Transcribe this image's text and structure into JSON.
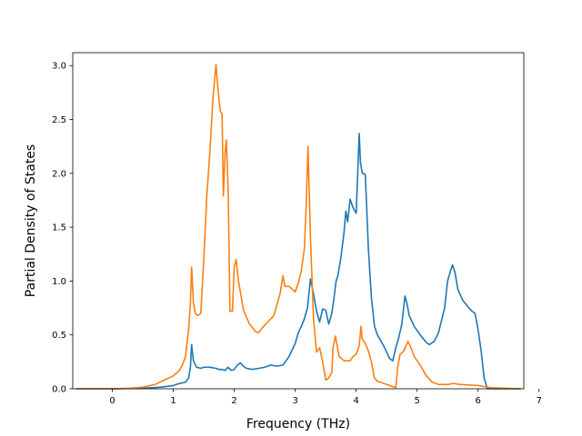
{
  "chart_data": {
    "type": "line",
    "xlabel": "Frequency (THz)",
    "ylabel": "Partial Density of States",
    "xlim": [
      -0.65,
      6.75
    ],
    "ylim": [
      0,
      3.12
    ],
    "xticks": [
      0,
      1,
      2,
      3,
      4,
      5,
      6,
      7
    ],
    "xtick_labels": [
      "0",
      "1",
      "2",
      "3",
      "4",
      "5",
      "6",
      "7"
    ],
    "yticks": [
      0,
      0.5,
      1.0,
      1.5,
      2.0,
      2.5,
      3.0
    ],
    "ytick_labels": [
      "0.0",
      "0.5",
      "1.0",
      "1.5",
      "2.0",
      "2.5",
      "3.0"
    ],
    "grid": false,
    "series": [
      {
        "color": "#1f77b4",
        "x": [
          -0.6,
          0.0,
          0.5,
          0.8,
          1.0,
          1.1,
          1.2,
          1.25,
          1.28,
          1.3,
          1.33,
          1.38,
          1.45,
          1.5,
          1.6,
          1.7,
          1.75,
          1.8,
          1.85,
          1.9,
          1.95,
          2.0,
          2.05,
          2.1,
          2.15,
          2.2,
          2.3,
          2.4,
          2.5,
          2.6,
          2.7,
          2.8,
          2.9,
          3.0,
          3.05,
          3.1,
          3.15,
          3.2,
          3.25,
          3.3,
          3.35,
          3.4,
          3.45,
          3.5,
          3.55,
          3.6,
          3.63,
          3.67,
          3.7,
          3.75,
          3.8,
          3.83,
          3.86,
          3.9,
          3.95,
          4.0,
          4.05,
          4.07,
          4.1,
          4.15,
          4.2,
          4.25,
          4.3,
          4.35,
          4.45,
          4.55,
          4.6,
          4.65,
          4.7,
          4.75,
          4.8,
          4.83,
          4.87,
          4.95,
          5.05,
          5.15,
          5.2,
          5.28,
          5.35,
          5.45,
          5.5,
          5.55,
          5.58,
          5.62,
          5.67,
          5.75,
          5.85,
          5.9,
          5.95,
          6.0,
          6.05,
          6.1,
          6.15,
          6.7
        ],
        "y": [
          0,
          0,
          0.005,
          0.015,
          0.03,
          0.05,
          0.06,
          0.1,
          0.2,
          0.41,
          0.26,
          0.2,
          0.19,
          0.2,
          0.2,
          0.19,
          0.18,
          0.18,
          0.17,
          0.2,
          0.17,
          0.18,
          0.22,
          0.24,
          0.21,
          0.19,
          0.18,
          0.19,
          0.2,
          0.22,
          0.21,
          0.22,
          0.3,
          0.42,
          0.52,
          0.58,
          0.65,
          0.75,
          1.02,
          0.88,
          0.72,
          0.62,
          0.74,
          0.73,
          0.6,
          0.7,
          0.82,
          1.0,
          1.05,
          1.22,
          1.45,
          1.65,
          1.55,
          1.76,
          1.68,
          1.63,
          2.37,
          2.1,
          2.0,
          1.99,
          1.3,
          0.85,
          0.58,
          0.5,
          0.4,
          0.28,
          0.26,
          0.38,
          0.48,
          0.6,
          0.86,
          0.8,
          0.68,
          0.58,
          0.5,
          0.43,
          0.41,
          0.44,
          0.52,
          0.75,
          1.0,
          1.1,
          1.15,
          1.08,
          0.92,
          0.82,
          0.75,
          0.72,
          0.7,
          0.55,
          0.35,
          0.1,
          0,
          0
        ]
      },
      {
        "color": "#ff7f0e",
        "x": [
          -0.6,
          0.0,
          0.3,
          0.5,
          0.7,
          0.85,
          1.0,
          1.1,
          1.15,
          1.2,
          1.25,
          1.28,
          1.3,
          1.33,
          1.36,
          1.4,
          1.45,
          1.5,
          1.55,
          1.6,
          1.65,
          1.7,
          1.73,
          1.77,
          1.8,
          1.82,
          1.85,
          1.87,
          1.9,
          1.93,
          1.97,
          2.0,
          2.03,
          2.07,
          2.1,
          2.15,
          2.25,
          2.35,
          2.4,
          2.45,
          2.55,
          2.65,
          2.7,
          2.75,
          2.8,
          2.83,
          2.9,
          3.0,
          3.05,
          3.1,
          3.15,
          3.18,
          3.21,
          3.25,
          3.3,
          3.35,
          3.4,
          3.45,
          3.5,
          3.55,
          3.6,
          3.62,
          3.66,
          3.72,
          3.8,
          3.9,
          3.95,
          4.0,
          4.05,
          4.08,
          4.1,
          4.15,
          4.2,
          4.25,
          4.3,
          4.35,
          4.4,
          4.5,
          4.6,
          4.65,
          4.68,
          4.72,
          4.78,
          4.85,
          4.9,
          4.95,
          5.05,
          5.15,
          5.25,
          5.35,
          5.5,
          5.6,
          5.7,
          6.0,
          6.1,
          6.2,
          6.7
        ],
        "y": [
          0,
          0,
          0.005,
          0.015,
          0.04,
          0.08,
          0.12,
          0.17,
          0.22,
          0.3,
          0.55,
          0.8,
          1.13,
          0.8,
          0.7,
          0.68,
          0.7,
          1.2,
          1.8,
          2.2,
          2.7,
          3.01,
          2.8,
          2.58,
          2.55,
          1.79,
          2.2,
          2.31,
          1.85,
          0.72,
          0.72,
          1.13,
          1.2,
          1.0,
          0.9,
          0.73,
          0.6,
          0.53,
          0.52,
          0.56,
          0.62,
          0.68,
          0.78,
          0.88,
          1.05,
          0.95,
          0.95,
          0.9,
          0.98,
          1.1,
          1.3,
          1.7,
          2.25,
          1.4,
          0.65,
          0.34,
          0.38,
          0.25,
          0.08,
          0.1,
          0.15,
          0.38,
          0.49,
          0.3,
          0.26,
          0.26,
          0.3,
          0.32,
          0.4,
          0.58,
          0.46,
          0.42,
          0.35,
          0.25,
          0.1,
          0.07,
          0.06,
          0.04,
          0.02,
          0.01,
          0.2,
          0.32,
          0.35,
          0.44,
          0.38,
          0.3,
          0.22,
          0.12,
          0.06,
          0.04,
          0.04,
          0.05,
          0.04,
          0.03,
          0.02,
          0.01,
          0
        ]
      }
    ]
  }
}
